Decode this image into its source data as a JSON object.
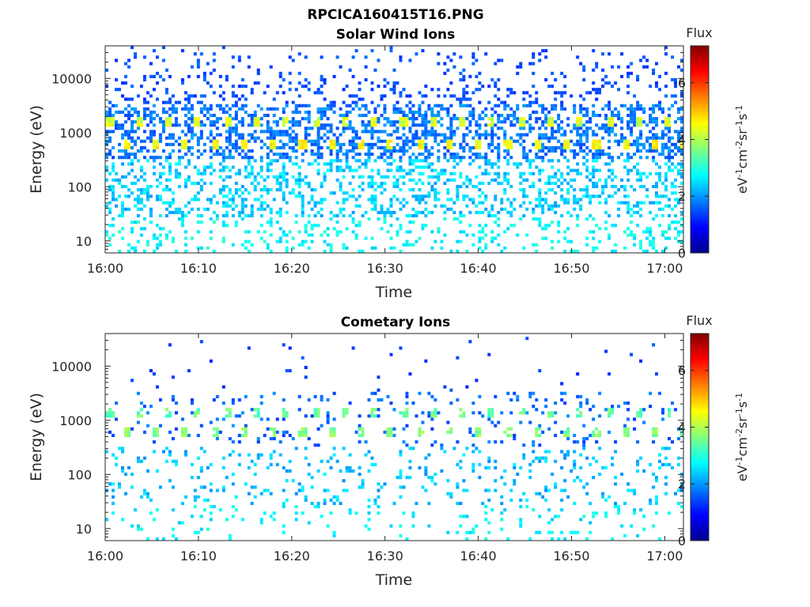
{
  "figure_title": "RPCICA160415T16.PNG",
  "chart_data": [
    {
      "type": "heatmap",
      "title": "Solar Wind Ions",
      "xlabel": "Time",
      "ylabel": "Energy (eV)",
      "x_ticks": [
        "16:00",
        "16:10",
        "16:20",
        "16:30",
        "16:40",
        "16:50",
        "17:00"
      ],
      "x_range": [
        "16:00",
        "17:02"
      ],
      "y_scale": "log",
      "y_ticks": [
        "10",
        "100",
        "1000",
        "10000"
      ],
      "y_range": [
        6,
        40000
      ],
      "colorbar": {
        "label_top": "Flux",
        "ticks": [
          "0",
          "2",
          "4",
          "6"
        ],
        "range": [
          0,
          7.3
        ],
        "unit": "eV-1cm-2sr-1s-1"
      },
      "features": {
        "sweep_period_min": 3.15,
        "bright_bands_eV": [
          1400,
          600
        ],
        "peak_flux_log": 4.7,
        "background_flux_log": 1.4
      }
    },
    {
      "type": "heatmap",
      "title": "Cometary Ions",
      "xlabel": "Time",
      "ylabel": "Energy (eV)",
      "x_ticks": [
        "16:00",
        "16:10",
        "16:20",
        "16:30",
        "16:40",
        "16:50",
        "17:00"
      ],
      "x_range": [
        "16:00",
        "17:02"
      ],
      "y_scale": "log",
      "y_ticks": [
        "10",
        "100",
        "1000",
        "10000"
      ],
      "y_range": [
        6,
        40000
      ],
      "colorbar": {
        "label_top": "Flux",
        "ticks": [
          "0",
          "2",
          "4",
          "6"
        ],
        "range": [
          0,
          7.3
        ],
        "unit": "eV-1cm-2sr-1s-1"
      },
      "features": {
        "sweep_period_min": 3.15,
        "bright_bands_eV": [
          1300,
          580
        ],
        "peak_flux_log": 3.8,
        "background_flux_log": 1.3
      }
    }
  ]
}
